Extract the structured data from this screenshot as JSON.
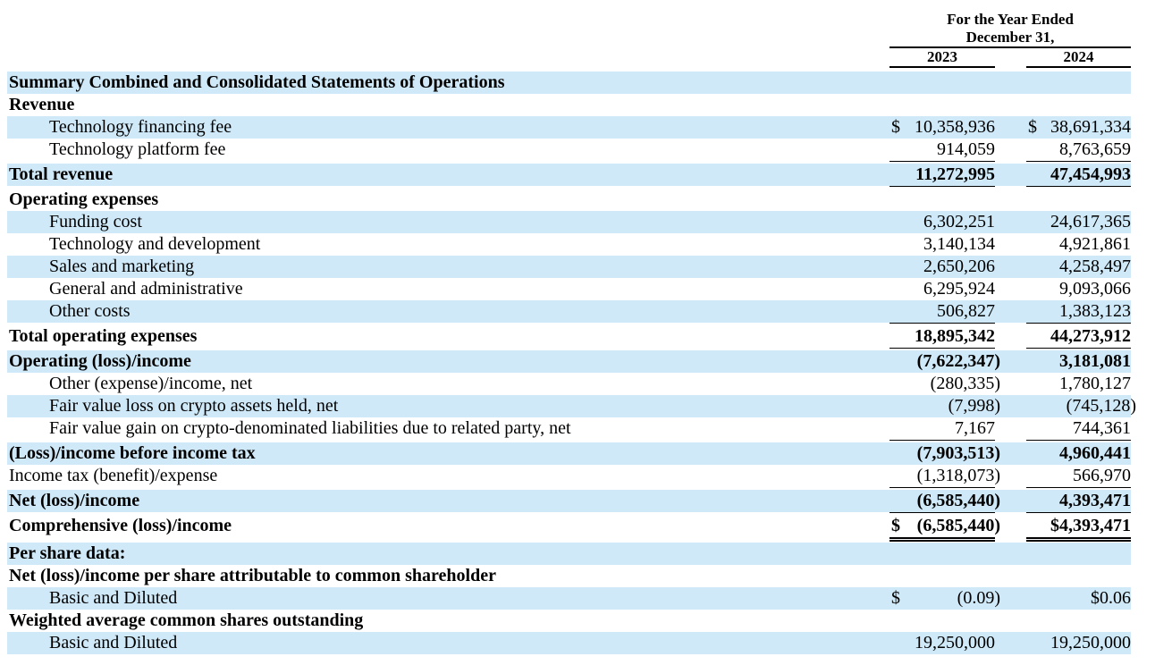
{
  "header": {
    "title_line1": "For the Year Ended",
    "title_line2": "December 31,",
    "year_2023": "2023",
    "year_2024": "2024"
  },
  "colors": {
    "row_highlight": "#cfe9f8",
    "text": "#000000",
    "rule": "#000000"
  },
  "rows": [
    {
      "label": "Summary Combined and Consolidated Statements of Operations",
      "bold": true,
      "indent": false,
      "shaded": true,
      "underline": "none",
      "cur2023": "",
      "val2023": "",
      "cur2024": "",
      "val2024": ""
    },
    {
      "label": "Revenue",
      "bold": true,
      "indent": false,
      "shaded": false,
      "underline": "none",
      "cur2023": "",
      "val2023": "",
      "cur2024": "",
      "val2024": ""
    },
    {
      "label": "Technology financing fee",
      "bold": false,
      "indent": true,
      "shaded": true,
      "underline": "none",
      "cur2023": "$",
      "val2023": "10,358,936",
      "cur2024": "$",
      "val2024": "38,691,334"
    },
    {
      "label": "Technology platform fee",
      "bold": false,
      "indent": true,
      "shaded": false,
      "underline": "single",
      "cur2023": "",
      "val2023": "914,059",
      "cur2024": "",
      "val2024": "8,763,659"
    },
    {
      "label": "Total revenue",
      "bold": true,
      "indent": false,
      "shaded": true,
      "underline": "single",
      "cur2023": "",
      "val2023": "11,272,995",
      "cur2024": "",
      "val2024": "47,454,993"
    },
    {
      "label": "Operating expenses",
      "bold": true,
      "indent": false,
      "shaded": false,
      "underline": "none",
      "cur2023": "",
      "val2023": "",
      "cur2024": "",
      "val2024": ""
    },
    {
      "label": "Funding cost",
      "bold": false,
      "indent": true,
      "shaded": true,
      "underline": "none",
      "cur2023": "",
      "val2023": "6,302,251",
      "cur2024": "",
      "val2024": "24,617,365"
    },
    {
      "label": "Technology and development",
      "bold": false,
      "indent": true,
      "shaded": false,
      "underline": "none",
      "cur2023": "",
      "val2023": "3,140,134",
      "cur2024": "",
      "val2024": "4,921,861"
    },
    {
      "label": "Sales and marketing",
      "bold": false,
      "indent": true,
      "shaded": true,
      "underline": "none",
      "cur2023": "",
      "val2023": "2,650,206",
      "cur2024": "",
      "val2024": "4,258,497"
    },
    {
      "label": "General and administrative",
      "bold": false,
      "indent": true,
      "shaded": false,
      "underline": "none",
      "cur2023": "",
      "val2023": "6,295,924",
      "cur2024": "",
      "val2024": "9,093,066"
    },
    {
      "label": "Other costs",
      "bold": false,
      "indent": true,
      "shaded": true,
      "underline": "single",
      "cur2023": "",
      "val2023": "506,827",
      "cur2024": "",
      "val2024": "1,383,123"
    },
    {
      "label": "Total operating expenses",
      "bold": true,
      "indent": false,
      "shaded": false,
      "underline": "single",
      "cur2023": "",
      "val2023": "18,895,342",
      "cur2024": "",
      "val2024": "44,273,912"
    },
    {
      "label": "Operating (loss)/income",
      "bold": true,
      "indent": false,
      "shaded": true,
      "underline": "none",
      "cur2023": "",
      "val2023": "(7,622,347)",
      "cur2024": "",
      "val2024": "3,181,081"
    },
    {
      "label": "Other (expense)/income, net",
      "bold": false,
      "indent": true,
      "shaded": false,
      "underline": "none",
      "cur2023": "",
      "val2023": "(280,335)",
      "cur2024": "",
      "val2024": "1,780,127"
    },
    {
      "label": "Fair value loss on crypto assets held, net",
      "bold": false,
      "indent": true,
      "shaded": true,
      "underline": "none",
      "cur2023": "",
      "val2023": "(7,998)",
      "cur2024": "",
      "val2024": "(745,128)"
    },
    {
      "label": "Fair value gain on crypto-denominated liabilities due to related party, net",
      "bold": false,
      "indent": true,
      "shaded": false,
      "underline": "single",
      "cur2023": "",
      "val2023": "7,167",
      "cur2024": "",
      "val2024": "744,361"
    },
    {
      "label": "(Loss)/income before income tax",
      "bold": true,
      "indent": false,
      "shaded": true,
      "underline": "none",
      "cur2023": "",
      "val2023": "(7,903,513)",
      "cur2024": "",
      "val2024": "4,960,441"
    },
    {
      "label": "Income tax (benefit)/expense",
      "bold": false,
      "indent": false,
      "shaded": false,
      "underline": "single",
      "cur2023": "",
      "val2023": "(1,318,073)",
      "cur2024": "",
      "val2024": "566,970"
    },
    {
      "label": "Net (loss)/income",
      "bold": true,
      "indent": false,
      "shaded": true,
      "underline": "single",
      "cur2023": "",
      "val2023": "(6,585,440)",
      "cur2024": "",
      "val2024": "4,393,471"
    },
    {
      "label": "Comprehensive (loss)/income",
      "bold": true,
      "indent": false,
      "shaded": false,
      "underline": "double",
      "cur2023": "$",
      "val2023": "(6,585,440)",
      "cur2024": "",
      "val2024": "$4,393,471"
    },
    {
      "label": "Per share data:",
      "bold": true,
      "indent": false,
      "shaded": true,
      "underline": "none",
      "cur2023": "",
      "val2023": "",
      "cur2024": "",
      "val2024": ""
    },
    {
      "label": "Net (loss)/income per share attributable to common shareholder",
      "bold": true,
      "indent": false,
      "shaded": false,
      "underline": "none",
      "cur2023": "",
      "val2023": "",
      "cur2024": "",
      "val2024": ""
    },
    {
      "label": "Basic and Diluted",
      "bold": false,
      "indent": true,
      "shaded": true,
      "underline": "none",
      "cur2023": "$",
      "val2023": "(0.09)",
      "cur2024": "",
      "val2024": "$0.06"
    },
    {
      "label": "Weighted average common shares outstanding",
      "bold": true,
      "indent": false,
      "shaded": false,
      "underline": "none",
      "cur2023": "",
      "val2023": "",
      "cur2024": "",
      "val2024": ""
    },
    {
      "label": "Basic and Diluted",
      "bold": false,
      "indent": true,
      "shaded": true,
      "underline": "none",
      "cur2023": "",
      "val2023": "19,250,000",
      "cur2024": "",
      "val2024": "19,250,000"
    }
  ]
}
